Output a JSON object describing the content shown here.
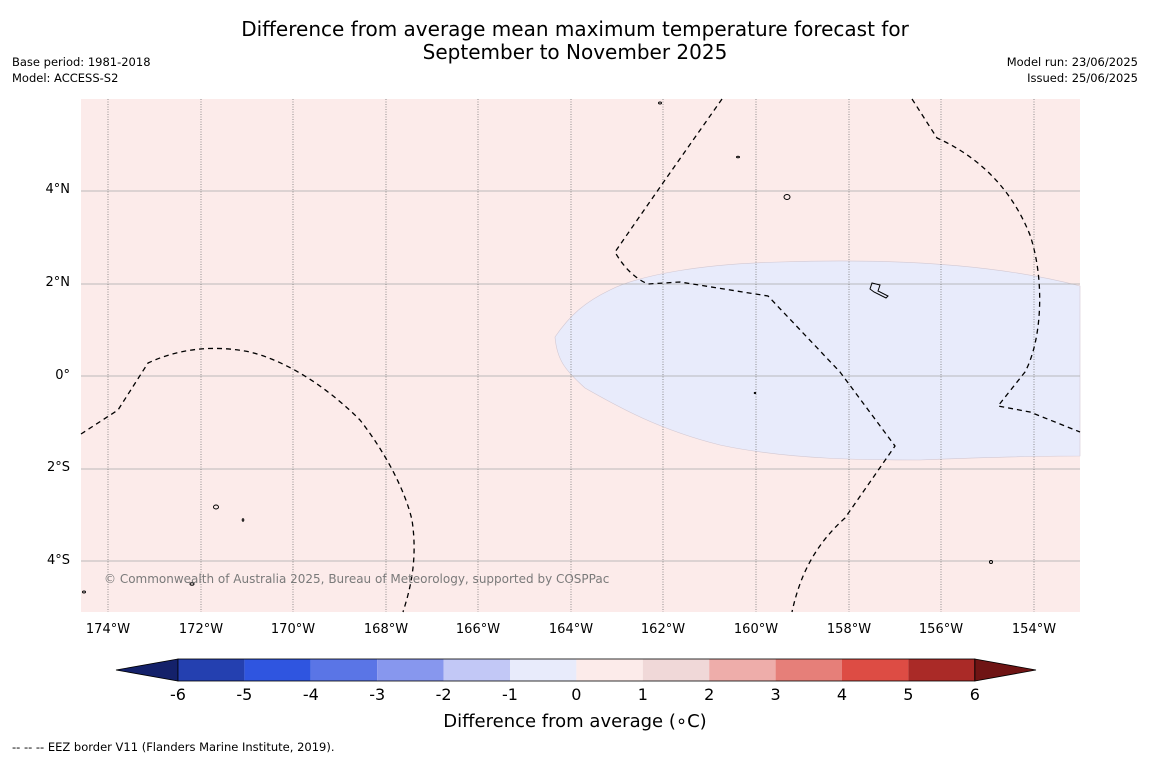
{
  "title": {
    "line1": "Difference from average mean maximum temperature forecast for",
    "line2": "September to November 2025"
  },
  "meta": {
    "base_period": "Base period: 1981-2018",
    "model": "Model: ACCESS-S2",
    "model_run": "Model run: 23/06/2025",
    "issued": "Issued: 25/06/2025"
  },
  "map": {
    "lat_labels": [
      "4°N",
      "2°N",
      "0°",
      "2°S",
      "4°S"
    ],
    "lon_labels": [
      "174°W",
      "172°W",
      "170°W",
      "168°W",
      "166°W",
      "164°W",
      "162°W",
      "160°W",
      "158°W",
      "156°W",
      "154°W"
    ],
    "colors": {
      "positive_0_1": "#fcebea",
      "negative_0_1": "#e8ebfb",
      "gridline": "#a9a9a9",
      "eez_border": "#000000"
    },
    "copyright": "© Commonwealth of Australia 2025, Bureau of Meteorology, supported by COSPPac"
  },
  "colorbar": {
    "ticks": [
      "-6",
      "-5",
      "-4",
      "-3",
      "-2",
      "-1",
      "0",
      "1",
      "2",
      "3",
      "4",
      "5",
      "6"
    ],
    "colors": [
      "#14216a",
      "#2440b0",
      "#2f55e0",
      "#5a75e6",
      "#8797ee",
      "#c2c8f6",
      "#e8ebfb",
      "#fcebea",
      "#f0d8d8",
      "#eeadaa",
      "#e67f79",
      "#dd4c44",
      "#aa2a27",
      "#6f1414"
    ],
    "label": "Difference from average (∘C)"
  },
  "footnote": "--  --  -- EEZ border V11 (Flanders Marine Institute, 2019)."
}
